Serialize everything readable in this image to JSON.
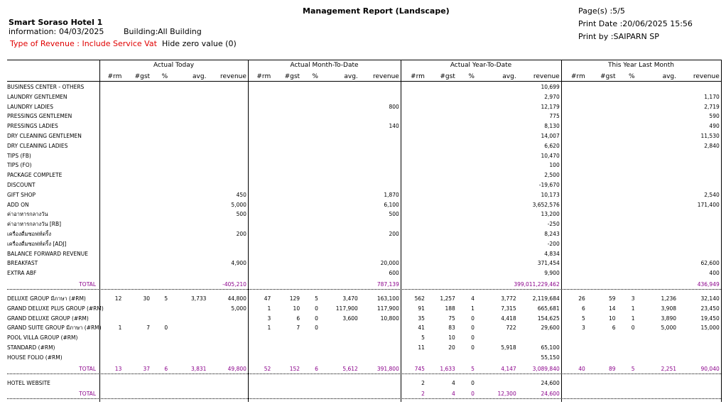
{
  "header": {
    "title": "Management Report (Landscape)",
    "hotel": "Smart Soraso Hotel 1",
    "info_label": "information:",
    "info_date": "04/03/2025",
    "building_label": "Building:",
    "building": "All Building",
    "revenue_type": "Type of Revenue : Include Service Vat",
    "hide_zero": "Hide zero value (0)",
    "page": "Page(s) :5/5",
    "print_date": "Print Date :20/06/2025 15:56",
    "print_by": "Print by :SAIPARN SP"
  },
  "columns": {
    "groups": [
      "Actual Today",
      "Actual Month-To-Date",
      "Actual Year-To-Date",
      "This Year Last Month"
    ],
    "subcols": [
      "#rm",
      "#gst",
      "%",
      "avg.",
      "revenue"
    ]
  },
  "sections": [
    {
      "rows": [
        {
          "label": "BUSINESS CENTER - OTHERS",
          "cells": [
            null,
            null,
            null,
            null,
            null,
            null,
            null,
            null,
            null,
            null,
            null,
            null,
            null,
            null,
            "10,699",
            null,
            null,
            null,
            null,
            null
          ]
        },
        {
          "label": "LAUNDRY GENTLEMEN",
          "cells": [
            null,
            null,
            null,
            null,
            null,
            null,
            null,
            null,
            null,
            null,
            null,
            null,
            null,
            null,
            "2,970",
            null,
            null,
            null,
            null,
            "1,170"
          ]
        },
        {
          "label": "LAUNDRY LADIES",
          "cells": [
            null,
            null,
            null,
            null,
            null,
            null,
            null,
            null,
            null,
            "800",
            null,
            null,
            null,
            null,
            "12,179",
            null,
            null,
            null,
            null,
            "2,719"
          ]
        },
        {
          "label": "PRESSINGS GENTLEMEN",
          "cells": [
            null,
            null,
            null,
            null,
            null,
            null,
            null,
            null,
            null,
            null,
            null,
            null,
            null,
            null,
            "775",
            null,
            null,
            null,
            null,
            "590"
          ]
        },
        {
          "label": "PRESSINGS LADIES",
          "cells": [
            null,
            null,
            null,
            null,
            null,
            null,
            null,
            null,
            null,
            "140",
            null,
            null,
            null,
            null,
            "8,130",
            null,
            null,
            null,
            null,
            "490"
          ]
        },
        {
          "label": "DRY CLEANING GENTLEMEN",
          "cells": [
            null,
            null,
            null,
            null,
            null,
            null,
            null,
            null,
            null,
            null,
            null,
            null,
            null,
            null,
            "14,007",
            null,
            null,
            null,
            null,
            "11,530"
          ]
        },
        {
          "label": "DRY CLEANING LADIES",
          "cells": [
            null,
            null,
            null,
            null,
            null,
            null,
            null,
            null,
            null,
            null,
            null,
            null,
            null,
            null,
            "6,620",
            null,
            null,
            null,
            null,
            "2,840"
          ]
        },
        {
          "label": "TIPS (FB)",
          "cells": [
            null,
            null,
            null,
            null,
            null,
            null,
            null,
            null,
            null,
            null,
            null,
            null,
            null,
            null,
            "10,470",
            null,
            null,
            null,
            null,
            null
          ]
        },
        {
          "label": "TIPS (FO)",
          "cells": [
            null,
            null,
            null,
            null,
            null,
            null,
            null,
            null,
            null,
            null,
            null,
            null,
            null,
            null,
            "100",
            null,
            null,
            null,
            null,
            null
          ]
        },
        {
          "label": "PACKAGE COMPLETE",
          "cells": [
            null,
            null,
            null,
            null,
            null,
            null,
            null,
            null,
            null,
            null,
            null,
            null,
            null,
            null,
            "2,500",
            null,
            null,
            null,
            null,
            null
          ]
        },
        {
          "label": "DISCOUNT",
          "cells": [
            null,
            null,
            null,
            null,
            null,
            null,
            null,
            null,
            null,
            null,
            null,
            null,
            null,
            null,
            "-19,670",
            null,
            null,
            null,
            null,
            null
          ]
        },
        {
          "label": "GIFT SHOP",
          "cells": [
            null,
            null,
            null,
            null,
            "450",
            null,
            null,
            null,
            null,
            "1,870",
            null,
            null,
            null,
            null,
            "10,173",
            null,
            null,
            null,
            null,
            "2,540"
          ]
        },
        {
          "label": "ADD ON",
          "cells": [
            null,
            null,
            null,
            null,
            "5,000",
            null,
            null,
            null,
            null,
            "6,100",
            null,
            null,
            null,
            null,
            "3,652,576",
            null,
            null,
            null,
            null,
            "171,400"
          ]
        },
        {
          "label": "ค่าอาหารกลางวัน",
          "cells": [
            null,
            null,
            null,
            null,
            "500",
            null,
            null,
            null,
            null,
            "500",
            null,
            null,
            null,
            null,
            "13,200",
            null,
            null,
            null,
            null,
            null
          ]
        },
        {
          "label": "ค่าอาหารกลางวัน [RB]",
          "cells": [
            null,
            null,
            null,
            null,
            null,
            null,
            null,
            null,
            null,
            null,
            null,
            null,
            null,
            null,
            "-250",
            null,
            null,
            null,
            null,
            null
          ]
        },
        {
          "label": "เครื่องดื่มซอฟท์ดริ้ง",
          "cells": [
            null,
            null,
            null,
            null,
            "200",
            null,
            null,
            null,
            null,
            "200",
            null,
            null,
            null,
            null,
            "8,243",
            null,
            null,
            null,
            null,
            null
          ]
        },
        {
          "label": "เครื่องดื่มซอฟท์ดริ้ง [ADJ]",
          "cells": [
            null,
            null,
            null,
            null,
            null,
            null,
            null,
            null,
            null,
            null,
            null,
            null,
            null,
            null,
            "-200",
            null,
            null,
            null,
            null,
            null
          ]
        },
        {
          "label": "BALANCE FORWARD REVENUE",
          "cells": [
            null,
            null,
            null,
            null,
            null,
            null,
            null,
            null,
            null,
            null,
            null,
            null,
            null,
            null,
            "4,834",
            null,
            null,
            null,
            null,
            null
          ]
        },
        {
          "label": "BREAKFAST",
          "cells": [
            null,
            null,
            null,
            null,
            "4,900",
            null,
            null,
            null,
            null,
            "20,000",
            null,
            null,
            null,
            null,
            "371,454",
            null,
            null,
            null,
            null,
            "62,600"
          ]
        },
        {
          "label": "EXTRA ABF",
          "cells": [
            null,
            null,
            null,
            null,
            null,
            null,
            null,
            null,
            null,
            "600",
            null,
            null,
            null,
            null,
            "9,900",
            null,
            null,
            null,
            null,
            "400"
          ]
        }
      ],
      "total": {
        "label": "TOTAL",
        "cells": [
          null,
          null,
          null,
          null,
          "-405,210",
          null,
          null,
          null,
          null,
          "787,139",
          null,
          null,
          null,
          null,
          "399,011,229,462",
          null,
          null,
          null,
          null,
          "436,949"
        ]
      }
    },
    {
      "rows": [
        {
          "label": "DELUXE GROUP มีภาษา (#RM)",
          "cells": [
            "12",
            "30",
            "5",
            "3,733",
            "44,800",
            "47",
            "129",
            "5",
            "3,470",
            "163,100",
            "562",
            "1,257",
            "4",
            "3,772",
            "2,119,684",
            "26",
            "59",
            "3",
            "1,236",
            "32,140"
          ]
        },
        {
          "label": "GRAND DELUXE PLUS GROUP (#RM)",
          "cells": [
            null,
            null,
            null,
            null,
            "5,000",
            "1",
            "10",
            "0",
            "117,900",
            "117,900",
            "91",
            "188",
            "1",
            "7,315",
            "665,681",
            "6",
            "14",
            "1",
            "3,908",
            "23,450"
          ]
        },
        {
          "label": "GRAND DELUXE GROUP (#RM)",
          "cells": [
            null,
            null,
            null,
            null,
            null,
            "3",
            "6",
            "0",
            "3,600",
            "10,800",
            "35",
            "75",
            "0",
            "4,418",
            "154,625",
            "5",
            "10",
            "1",
            "3,890",
            "19,450"
          ]
        },
        {
          "label": "GRAND SUITE GROUP มีภาษา (#RM)",
          "cells": [
            "1",
            "7",
            "0",
            null,
            null,
            "1",
            "7",
            "0",
            null,
            null,
            "41",
            "83",
            "0",
            "722",
            "29,600",
            "3",
            "6",
            "0",
            "5,000",
            "15,000"
          ]
        },
        {
          "label": "POOL VILLA GROUP (#RM)",
          "cells": [
            null,
            null,
            null,
            null,
            null,
            null,
            null,
            null,
            null,
            null,
            "5",
            "10",
            "0",
            null,
            null,
            null,
            null,
            null,
            null,
            null
          ]
        },
        {
          "label": "STANDARD (#RM)",
          "cells": [
            null,
            null,
            null,
            null,
            null,
            null,
            null,
            null,
            null,
            null,
            "11",
            "20",
            "0",
            "5,918",
            "65,100",
            null,
            null,
            null,
            null,
            null
          ]
        },
        {
          "label": "HOUSE FOLIO (#RM)",
          "cells": [
            null,
            null,
            null,
            null,
            null,
            null,
            null,
            null,
            null,
            null,
            null,
            null,
            null,
            null,
            "55,150",
            null,
            null,
            null,
            null,
            null
          ]
        }
      ],
      "total": {
        "label": "TOTAL",
        "cells": [
          "13",
          "37",
          "6",
          "3,831",
          "49,800",
          "52",
          "152",
          "6",
          "5,612",
          "391,800",
          "745",
          "1,633",
          "5",
          "4,147",
          "3,089,840",
          "40",
          "89",
          "5",
          "2,251",
          "90,040"
        ]
      }
    },
    {
      "rows": [
        {
          "label": "HOTEL WEBSITE",
          "cells": [
            null,
            null,
            null,
            null,
            null,
            null,
            null,
            null,
            null,
            null,
            "2",
            "4",
            "0",
            null,
            "24,600",
            null,
            null,
            null,
            null,
            null
          ]
        }
      ],
      "total": {
        "label": "TOTAL",
        "cells": [
          null,
          null,
          null,
          null,
          null,
          null,
          null,
          null,
          null,
          null,
          "2",
          "4",
          "0",
          "12,300",
          "24,600",
          null,
          null,
          null,
          null,
          null
        ]
      }
    }
  ]
}
